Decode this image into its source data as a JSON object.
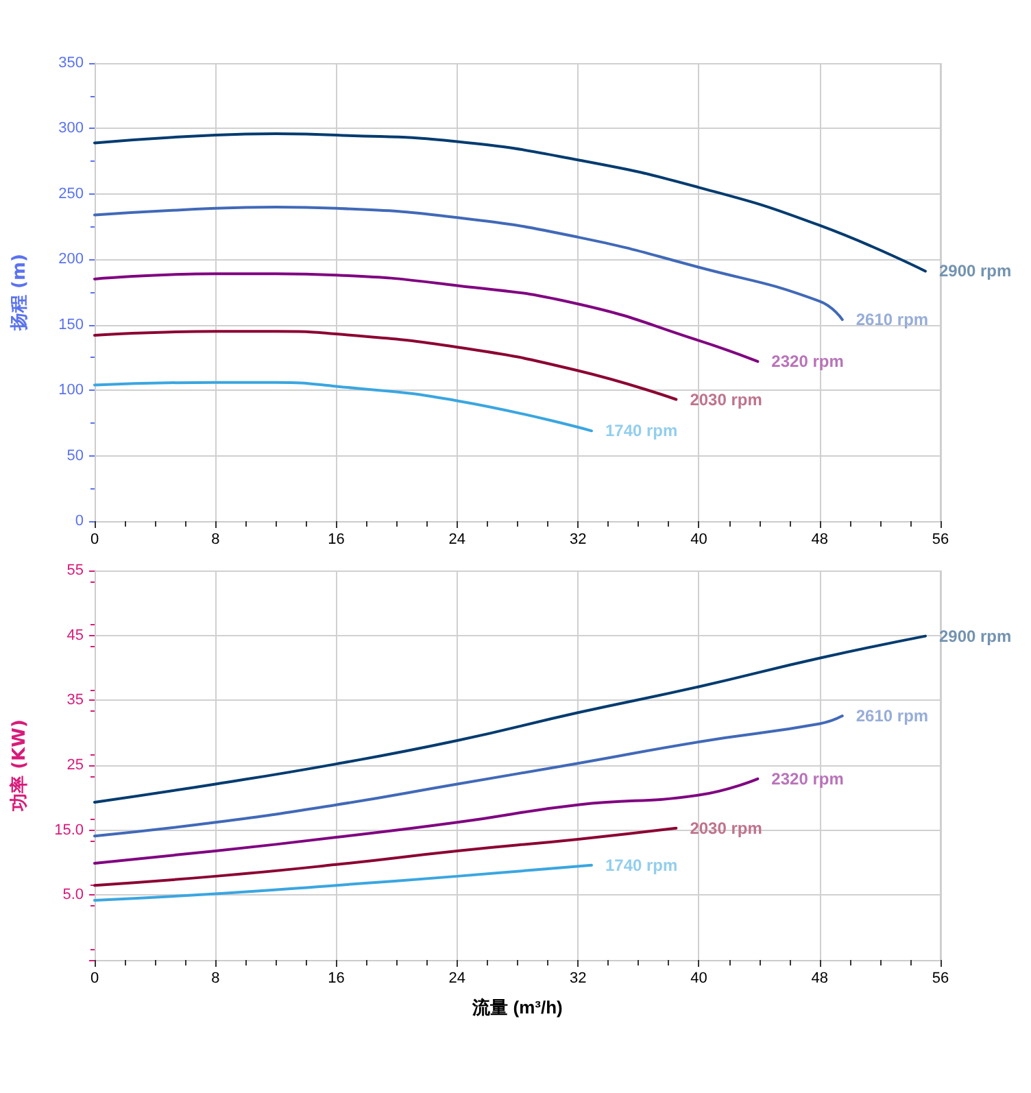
{
  "chart_data": [
    {
      "type": "line",
      "ylabel": "扬程 (m)",
      "xlim": [
        0,
        56
      ],
      "xticks": [
        0,
        8,
        16,
        24,
        32,
        40,
        48,
        56
      ],
      "ylim": [
        0,
        350
      ],
      "yticks": [
        0,
        50,
        100,
        150,
        200,
        250,
        300,
        350
      ],
      "grid": true,
      "legend": false,
      "marker": "none",
      "line_style": "solid",
      "series": [
        {
          "name": "2900 rpm",
          "color": "#003b6f",
          "x": [
            0,
            8,
            12,
            16,
            24,
            32,
            40,
            48,
            55
          ],
          "values": [
            289,
            295,
            296,
            295,
            290,
            276,
            255,
            226,
            191
          ]
        },
        {
          "name": "2610 rpm",
          "color": "#4169b8",
          "x": [
            0,
            8,
            12,
            16,
            24,
            32,
            40,
            48,
            49.5
          ],
          "values": [
            234,
            239,
            240,
            239,
            232,
            217,
            194,
            168,
            154
          ]
        },
        {
          "name": "2320 rpm",
          "color": "#800080",
          "x": [
            0,
            8,
            12,
            16,
            24,
            32,
            40,
            43.9
          ],
          "values": [
            185,
            189,
            189,
            188,
            180,
            166,
            138,
            122
          ]
        },
        {
          "name": "2030 rpm",
          "color": "#8b0032",
          "x": [
            0,
            8,
            12,
            16,
            24,
            32,
            38.5
          ],
          "values": [
            142,
            145,
            145,
            143,
            133,
            115,
            93
          ]
        },
        {
          "name": "1740 rpm",
          "color": "#3aa6e0",
          "x": [
            0,
            8,
            12,
            16,
            24,
            32.9
          ],
          "values": [
            104,
            106,
            106,
            103,
            92,
            69
          ]
        }
      ]
    },
    {
      "type": "line",
      "xlabel": "流量 (m³/h)",
      "ylabel": "功率 (KW)",
      "xlim": [
        0,
        56
      ],
      "xticks": [
        0,
        8,
        16,
        24,
        32,
        40,
        48,
        56
      ],
      "ylim": [
        -5,
        55
      ],
      "yticks": [
        {
          "value": -5,
          "label": null
        },
        {
          "value": 5,
          "label": "5.0"
        },
        {
          "value": 15,
          "label": "15.0"
        },
        25,
        35,
        45,
        55
      ],
      "grid": true,
      "legend": false,
      "marker": "none",
      "line_style": "solid",
      "series": [
        {
          "name": "2900 rpm",
          "color": "#003b6f",
          "x": [
            0,
            8,
            16,
            24,
            32,
            40,
            48,
            55
          ],
          "values": [
            19.3,
            22.1,
            25.2,
            28.8,
            33.1,
            37.1,
            41.5,
            44.9
          ]
        },
        {
          "name": "2610 rpm",
          "color": "#4169b8",
          "x": [
            0,
            8,
            16,
            24,
            32,
            40,
            48,
            49.5
          ],
          "values": [
            14.1,
            16.2,
            18.9,
            22.1,
            25.3,
            28.6,
            31.4,
            32.6
          ]
        },
        {
          "name": "2320 rpm",
          "color": "#800080",
          "x": [
            0,
            8,
            16,
            24,
            32,
            40,
            43.9
          ],
          "values": [
            9.9,
            11.8,
            13.9,
            16.2,
            18.9,
            20.4,
            22.9
          ]
        },
        {
          "name": "2030 rpm",
          "color": "#8b0032",
          "x": [
            0,
            8,
            16,
            24,
            32,
            38.5
          ],
          "values": [
            6.5,
            7.9,
            9.7,
            11.8,
            13.6,
            15.3
          ]
        },
        {
          "name": "1740 rpm",
          "color": "#3aa6e0",
          "x": [
            0,
            8,
            16,
            24,
            32.9
          ],
          "values": [
            4.2,
            5.2,
            6.5,
            7.9,
            9.6
          ]
        }
      ]
    }
  ]
}
